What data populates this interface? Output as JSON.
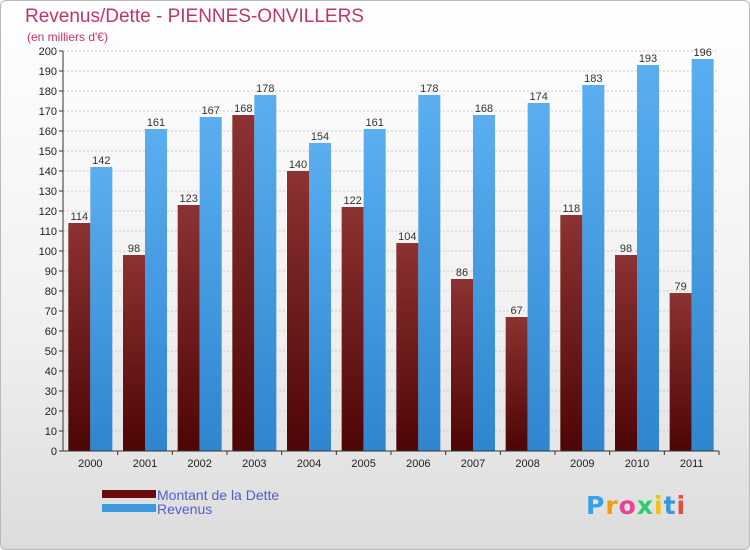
{
  "title": "Revenus/Dette - PIENNES-ONVILLERS",
  "subtitle": "(en milliers d'€)",
  "logo": {
    "text": "Proxiti",
    "letter_colors": [
      "#3aa0e8",
      "#f39c12",
      "#e84393",
      "#2ecc71",
      "#f1c40f",
      "#3498db",
      "#e74c3c"
    ]
  },
  "legend": [
    {
      "label": "Montant de la Dette",
      "color": "#6a0c0c"
    },
    {
      "label": "Revenus",
      "color": "#3e9ae0"
    }
  ],
  "chart_data": {
    "type": "bar",
    "title": "Revenus/Dette - PIENNES-ONVILLERS",
    "ylabel": "(en milliers d'€)",
    "xlabel": "",
    "ylim": [
      0,
      200
    ],
    "ytick_step": 10,
    "grid": true,
    "legend_position": "bottom-left",
    "categories": [
      "2000",
      "2001",
      "2002",
      "2003",
      "2004",
      "2005",
      "2006",
      "2007",
      "2008",
      "2009",
      "2010",
      "2011"
    ],
    "series": [
      {
        "name": "Montant de la Dette",
        "color": "#6a0c0c",
        "values": [
          114,
          98,
          123,
          168,
          140,
          122,
          104,
          86,
          67,
          118,
          98,
          79
        ]
      },
      {
        "name": "Revenus",
        "color": "#3e9ae0",
        "values": [
          142,
          161,
          167,
          178,
          154,
          161,
          178,
          168,
          174,
          183,
          193,
          196
        ]
      }
    ]
  }
}
